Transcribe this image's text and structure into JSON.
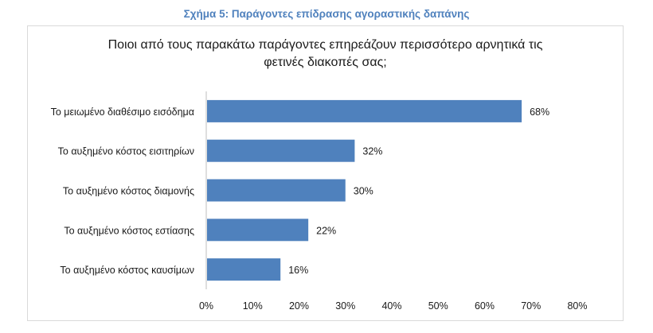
{
  "caption": "Σχήμα 5: Παράγοντες επίδρασης αγοραστικής δαπάνης",
  "chart_data": {
    "type": "bar",
    "orientation": "horizontal",
    "title_line1": "Ποιοι από τους παρακάτω παράγοντες επηρεάζουν περισσότερο αρνητικά τις",
    "title_line2": "φετινές διακοπές σας;",
    "categories": [
      "Το μειωμένο διαθέσιμο εισόδημα",
      "Το αυξημένο κόστος εισιτηρίων",
      "Το αυξημένο κόστος διαμονής",
      "Το αυξημένο κόστος εστίασης",
      "Το αυξημένο κόστος καυσίμων"
    ],
    "values": [
      68,
      32,
      30,
      22,
      16
    ],
    "data_labels": [
      "68%",
      "32%",
      "30%",
      "22%",
      "16%"
    ],
    "xlim": [
      0,
      80
    ],
    "xticks": [
      "0%",
      "10%",
      "20%",
      "30%",
      "40%",
      "50%",
      "60%",
      "70%",
      "80%"
    ],
    "bar_color": "#4f81bd",
    "grid": false
  }
}
